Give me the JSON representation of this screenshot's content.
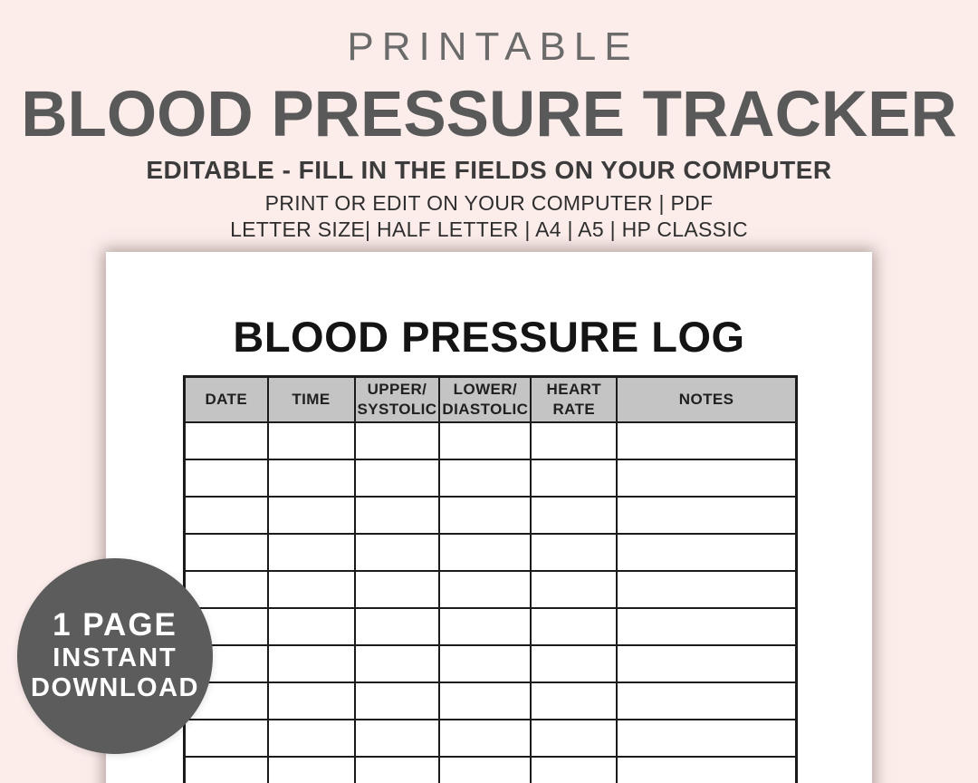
{
  "colors": {
    "background": "#fcedeb",
    "eyebrow_text": "#6b6b6b",
    "title_text": "#595959",
    "subtitle_text": "#3b3b3b",
    "paper": "#ffffff",
    "table_border": "#1b1b1b",
    "table_header_bg": "#c4c4c4",
    "badge_bg": "#5c5c5c",
    "badge_text": "#ffffff"
  },
  "hero": {
    "eyebrow": "PRINTABLE",
    "title": "BLOOD PRESSURE TRACKER",
    "subtitle": "EDITABLE - FILL IN THE FIELDS ON YOUR COMPUTER",
    "info_line_1": "PRINT OR EDIT ON YOUR COMPUTER | PDF",
    "info_line_2": "LETTER SIZE| HALF LETTER | A4 | A5 | HP CLASSIC"
  },
  "document": {
    "title": "BLOOD PRESSURE LOG",
    "table": {
      "columns": [
        {
          "id": "date",
          "label": "DATE"
        },
        {
          "id": "time",
          "label": "TIME"
        },
        {
          "id": "systolic",
          "label": "UPPER/\nSYSTOLIC"
        },
        {
          "id": "diastolic",
          "label": "LOWER/\nDIASTOLIC"
        },
        {
          "id": "heart-rate",
          "label": "HEART\nRATE"
        },
        {
          "id": "notes",
          "label": "NOTES"
        }
      ],
      "empty_rows": 10,
      "cell_values": []
    }
  },
  "badge": {
    "line1": "1 PAGE",
    "line2": "INSTANT",
    "line3": "DOWNLOAD"
  }
}
